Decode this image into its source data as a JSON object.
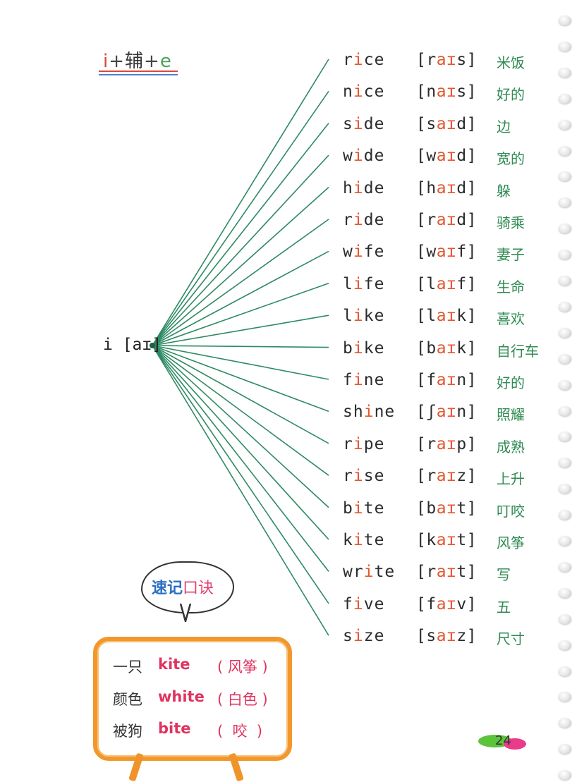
{
  "rule": {
    "part_i": "i",
    "plus1": "+",
    "consonant": "辅",
    "plus2": "+",
    "part_e": "e"
  },
  "hub": {
    "label": "i [aɪ]"
  },
  "words": [
    {
      "pre": "r",
      "hl": "i",
      "post": "ce",
      "ipa_pre": "[r",
      "ipa_hl": "aɪ",
      "ipa_post": "s]",
      "meaning": "米饭"
    },
    {
      "pre": "n",
      "hl": "i",
      "post": "ce",
      "ipa_pre": "[n",
      "ipa_hl": "aɪ",
      "ipa_post": "s]",
      "meaning": "好的"
    },
    {
      "pre": "s",
      "hl": "i",
      "post": "de",
      "ipa_pre": "[s",
      "ipa_hl": "aɪ",
      "ipa_post": "d]",
      "meaning": "边"
    },
    {
      "pre": "w",
      "hl": "i",
      "post": "de",
      "ipa_pre": "[w",
      "ipa_hl": "aɪ",
      "ipa_post": "d]",
      "meaning": "宽的"
    },
    {
      "pre": "h",
      "hl": "i",
      "post": "de",
      "ipa_pre": "[h",
      "ipa_hl": "aɪ",
      "ipa_post": "d]",
      "meaning": "躲"
    },
    {
      "pre": "r",
      "hl": "i",
      "post": "de",
      "ipa_pre": "[r",
      "ipa_hl": "aɪ",
      "ipa_post": "d]",
      "meaning": "骑乘"
    },
    {
      "pre": "w",
      "hl": "i",
      "post": "fe",
      "ipa_pre": "[w",
      "ipa_hl": "aɪ",
      "ipa_post": "f]",
      "meaning": "妻子"
    },
    {
      "pre": "l",
      "hl": "i",
      "post": "fe",
      "ipa_pre": "[l",
      "ipa_hl": "aɪ",
      "ipa_post": "f]",
      "meaning": "生命"
    },
    {
      "pre": "l",
      "hl": "i",
      "post": "ke",
      "ipa_pre": "[l",
      "ipa_hl": "aɪ",
      "ipa_post": "k]",
      "meaning": "喜欢"
    },
    {
      "pre": "b",
      "hl": "i",
      "post": "ke",
      "ipa_pre": "[b",
      "ipa_hl": "aɪ",
      "ipa_post": "k]",
      "meaning": "自行车"
    },
    {
      "pre": "f",
      "hl": "i",
      "post": "ne",
      "ipa_pre": "[f",
      "ipa_hl": "aɪ",
      "ipa_post": "n]",
      "meaning": "好的"
    },
    {
      "pre": "sh",
      "hl": "i",
      "post": "ne",
      "ipa_pre": "[ʃ",
      "ipa_hl": "aɪ",
      "ipa_post": "n]",
      "meaning": "照耀"
    },
    {
      "pre": "r",
      "hl": "i",
      "post": "pe",
      "ipa_pre": "[r",
      "ipa_hl": "aɪ",
      "ipa_post": "p]",
      "meaning": "成熟"
    },
    {
      "pre": "r",
      "hl": "i",
      "post": "se",
      "ipa_pre": "[r",
      "ipa_hl": "aɪ",
      "ipa_post": "z]",
      "meaning": "上升"
    },
    {
      "pre": "b",
      "hl": "i",
      "post": "te",
      "ipa_pre": "[b",
      "ipa_hl": "aɪ",
      "ipa_post": "t]",
      "meaning": "叮咬"
    },
    {
      "pre": "k",
      "hl": "i",
      "post": "te",
      "ipa_pre": "[k",
      "ipa_hl": "aɪ",
      "ipa_post": "t]",
      "meaning": "风筝"
    },
    {
      "pre": "wr",
      "hl": "i",
      "post": "te",
      "ipa_pre": "[r",
      "ipa_hl": "aɪ",
      "ipa_post": "t]",
      "meaning": "写"
    },
    {
      "pre": "f",
      "hl": "i",
      "post": "ve",
      "ipa_pre": "[f",
      "ipa_hl": "aɪ",
      "ipa_post": "v]",
      "meaning": "五"
    },
    {
      "pre": "s",
      "hl": "i",
      "post": "ze",
      "ipa_pre": "[s",
      "ipa_hl": "aɪ",
      "ipa_post": "z]",
      "meaning": "尺寸"
    }
  ],
  "bubble": {
    "main": "速记",
    "accent": "口诀"
  },
  "rhyme": [
    {
      "cn": "一只",
      "en": "kite",
      "paren": "( 风筝 )"
    },
    {
      "cn": "颜色",
      "en": "white",
      "paren": "( 白色 )"
    },
    {
      "cn": "被狗",
      "en": "bite",
      "paren": "(  咬  )"
    }
  ],
  "page_number": "24",
  "colors": {
    "line": "#2e8a63",
    "accent_orange": "#e2572f",
    "meaning_green": "#2f8a52",
    "board_orange": "#f2972b",
    "rhyme_pink": "#e0345f",
    "bubble_blue": "#2a6fc4"
  }
}
